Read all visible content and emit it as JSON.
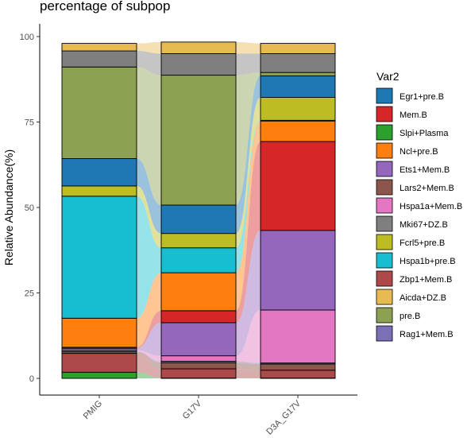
{
  "chart_data": {
    "type": "alluvial-stacked-bar",
    "title": "percentage of subpop",
    "xlabel": "",
    "ylabel": "Relative Abundance(%)",
    "ylim": [
      0,
      100
    ],
    "yticks": [
      0,
      25,
      50,
      75,
      100
    ],
    "categories": [
      "PMIG",
      "G17V",
      "D3A_G17V"
    ],
    "legend_title": "Var2",
    "legend_position": "right",
    "grid": false,
    "series": [
      {
        "name": "Egr1+pre.B",
        "color": "#1F77B4",
        "values": [
          8.0,
          8.3,
          6.3
        ]
      },
      {
        "name": "Mem.B",
        "color": "#D62728",
        "values": [
          0.3,
          3.5,
          26.0
        ]
      },
      {
        "name": "Slpi+Plasma",
        "color": "#2CA02C",
        "values": [
          1.8,
          0.1,
          0.1
        ]
      },
      {
        "name": "Ncl+pre.B",
        "color": "#FF7F0E",
        "values": [
          8.5,
          11.1,
          6.0
        ]
      },
      {
        "name": "Ets1+Mem.B",
        "color": "#9467BD",
        "values": [
          0.6,
          9.7,
          23.3
        ]
      },
      {
        "name": "Lars2+Mem.B",
        "color": "#8C564B",
        "values": [
          0.5,
          1.8,
          1.8
        ]
      },
      {
        "name": "Hspa1a+Mem.B",
        "color": "#E377C2",
        "values": [
          0.4,
          1.6,
          15.5
        ]
      },
      {
        "name": "Mki67+DZ.B",
        "color": "#7F7F7F",
        "values": [
          4.7,
          6.3,
          5.5
        ]
      },
      {
        "name": "Fcrl5+pre.B",
        "color": "#BCBD22",
        "values": [
          3.0,
          4.2,
          6.7
        ]
      },
      {
        "name": "Hspa1b+pre.B",
        "color": "#17BECF",
        "values": [
          35.7,
          7.3,
          0.2
        ]
      },
      {
        "name": "Zbp1+Mem.B",
        "color": "#AD494A",
        "values": [
          5.5,
          2.7,
          2.3
        ]
      },
      {
        "name": "Aicda+DZ.B",
        "color": "#E7BA52",
        "values": [
          2.2,
          3.4,
          3.0
        ]
      },
      {
        "name": "pre.B",
        "color": "#8CA252",
        "values": [
          26.8,
          38.0,
          1.0
        ]
      },
      {
        "name": "Rag1+Mem.B",
        "color": "#7B6FB5",
        "values": [
          0.0,
          0.4,
          0.3
        ]
      }
    ],
    "stack_order_bottom_to_top": [
      "Slpi+Plasma",
      "Zbp1+Mem.B",
      "Lars2+Mem.B",
      "Rag1+Mem.B",
      "Hspa1a+Mem.B",
      "Ets1+Mem.B",
      "Mem.B",
      "Ncl+pre.B",
      "Hspa1b+pre.B",
      "Fcrl5+pre.B",
      "Egr1+pre.B",
      "pre.B",
      "Mki67+DZ.B",
      "Aicda+DZ.B"
    ]
  }
}
